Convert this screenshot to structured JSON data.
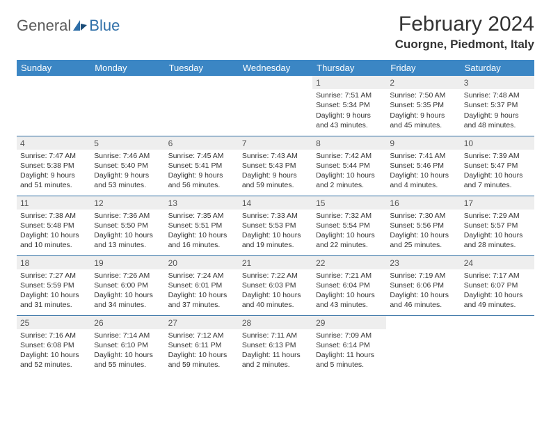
{
  "brand": {
    "g": "General",
    "b": "Blue"
  },
  "title": "February 2024",
  "location": "Cuorgne, Piedmont, Italy",
  "header_bg": "#3b86c4",
  "rule_color": "#2a6aa0",
  "daynum_bg": "#eeeeee",
  "weekdays": [
    "Sunday",
    "Monday",
    "Tuesday",
    "Wednesday",
    "Thursday",
    "Friday",
    "Saturday"
  ],
  "weeks": [
    [
      null,
      null,
      null,
      null,
      {
        "n": "1",
        "sr": "Sunrise: 7:51 AM",
        "ss": "Sunset: 5:34 PM",
        "dl1": "Daylight: 9 hours",
        "dl2": "and 43 minutes."
      },
      {
        "n": "2",
        "sr": "Sunrise: 7:50 AM",
        "ss": "Sunset: 5:35 PM",
        "dl1": "Daylight: 9 hours",
        "dl2": "and 45 minutes."
      },
      {
        "n": "3",
        "sr": "Sunrise: 7:48 AM",
        "ss": "Sunset: 5:37 PM",
        "dl1": "Daylight: 9 hours",
        "dl2": "and 48 minutes."
      }
    ],
    [
      {
        "n": "4",
        "sr": "Sunrise: 7:47 AM",
        "ss": "Sunset: 5:38 PM",
        "dl1": "Daylight: 9 hours",
        "dl2": "and 51 minutes."
      },
      {
        "n": "5",
        "sr": "Sunrise: 7:46 AM",
        "ss": "Sunset: 5:40 PM",
        "dl1": "Daylight: 9 hours",
        "dl2": "and 53 minutes."
      },
      {
        "n": "6",
        "sr": "Sunrise: 7:45 AM",
        "ss": "Sunset: 5:41 PM",
        "dl1": "Daylight: 9 hours",
        "dl2": "and 56 minutes."
      },
      {
        "n": "7",
        "sr": "Sunrise: 7:43 AM",
        "ss": "Sunset: 5:43 PM",
        "dl1": "Daylight: 9 hours",
        "dl2": "and 59 minutes."
      },
      {
        "n": "8",
        "sr": "Sunrise: 7:42 AM",
        "ss": "Sunset: 5:44 PM",
        "dl1": "Daylight: 10 hours",
        "dl2": "and 2 minutes."
      },
      {
        "n": "9",
        "sr": "Sunrise: 7:41 AM",
        "ss": "Sunset: 5:46 PM",
        "dl1": "Daylight: 10 hours",
        "dl2": "and 4 minutes."
      },
      {
        "n": "10",
        "sr": "Sunrise: 7:39 AM",
        "ss": "Sunset: 5:47 PM",
        "dl1": "Daylight: 10 hours",
        "dl2": "and 7 minutes."
      }
    ],
    [
      {
        "n": "11",
        "sr": "Sunrise: 7:38 AM",
        "ss": "Sunset: 5:48 PM",
        "dl1": "Daylight: 10 hours",
        "dl2": "and 10 minutes."
      },
      {
        "n": "12",
        "sr": "Sunrise: 7:36 AM",
        "ss": "Sunset: 5:50 PM",
        "dl1": "Daylight: 10 hours",
        "dl2": "and 13 minutes."
      },
      {
        "n": "13",
        "sr": "Sunrise: 7:35 AM",
        "ss": "Sunset: 5:51 PM",
        "dl1": "Daylight: 10 hours",
        "dl2": "and 16 minutes."
      },
      {
        "n": "14",
        "sr": "Sunrise: 7:33 AM",
        "ss": "Sunset: 5:53 PM",
        "dl1": "Daylight: 10 hours",
        "dl2": "and 19 minutes."
      },
      {
        "n": "15",
        "sr": "Sunrise: 7:32 AM",
        "ss": "Sunset: 5:54 PM",
        "dl1": "Daylight: 10 hours",
        "dl2": "and 22 minutes."
      },
      {
        "n": "16",
        "sr": "Sunrise: 7:30 AM",
        "ss": "Sunset: 5:56 PM",
        "dl1": "Daylight: 10 hours",
        "dl2": "and 25 minutes."
      },
      {
        "n": "17",
        "sr": "Sunrise: 7:29 AM",
        "ss": "Sunset: 5:57 PM",
        "dl1": "Daylight: 10 hours",
        "dl2": "and 28 minutes."
      }
    ],
    [
      {
        "n": "18",
        "sr": "Sunrise: 7:27 AM",
        "ss": "Sunset: 5:59 PM",
        "dl1": "Daylight: 10 hours",
        "dl2": "and 31 minutes."
      },
      {
        "n": "19",
        "sr": "Sunrise: 7:26 AM",
        "ss": "Sunset: 6:00 PM",
        "dl1": "Daylight: 10 hours",
        "dl2": "and 34 minutes."
      },
      {
        "n": "20",
        "sr": "Sunrise: 7:24 AM",
        "ss": "Sunset: 6:01 PM",
        "dl1": "Daylight: 10 hours",
        "dl2": "and 37 minutes."
      },
      {
        "n": "21",
        "sr": "Sunrise: 7:22 AM",
        "ss": "Sunset: 6:03 PM",
        "dl1": "Daylight: 10 hours",
        "dl2": "and 40 minutes."
      },
      {
        "n": "22",
        "sr": "Sunrise: 7:21 AM",
        "ss": "Sunset: 6:04 PM",
        "dl1": "Daylight: 10 hours",
        "dl2": "and 43 minutes."
      },
      {
        "n": "23",
        "sr": "Sunrise: 7:19 AM",
        "ss": "Sunset: 6:06 PM",
        "dl1": "Daylight: 10 hours",
        "dl2": "and 46 minutes."
      },
      {
        "n": "24",
        "sr": "Sunrise: 7:17 AM",
        "ss": "Sunset: 6:07 PM",
        "dl1": "Daylight: 10 hours",
        "dl2": "and 49 minutes."
      }
    ],
    [
      {
        "n": "25",
        "sr": "Sunrise: 7:16 AM",
        "ss": "Sunset: 6:08 PM",
        "dl1": "Daylight: 10 hours",
        "dl2": "and 52 minutes."
      },
      {
        "n": "26",
        "sr": "Sunrise: 7:14 AM",
        "ss": "Sunset: 6:10 PM",
        "dl1": "Daylight: 10 hours",
        "dl2": "and 55 minutes."
      },
      {
        "n": "27",
        "sr": "Sunrise: 7:12 AM",
        "ss": "Sunset: 6:11 PM",
        "dl1": "Daylight: 10 hours",
        "dl2": "and 59 minutes."
      },
      {
        "n": "28",
        "sr": "Sunrise: 7:11 AM",
        "ss": "Sunset: 6:13 PM",
        "dl1": "Daylight: 11 hours",
        "dl2": "and 2 minutes."
      },
      {
        "n": "29",
        "sr": "Sunrise: 7:09 AM",
        "ss": "Sunset: 6:14 PM",
        "dl1": "Daylight: 11 hours",
        "dl2": "and 5 minutes."
      },
      null,
      null
    ]
  ]
}
